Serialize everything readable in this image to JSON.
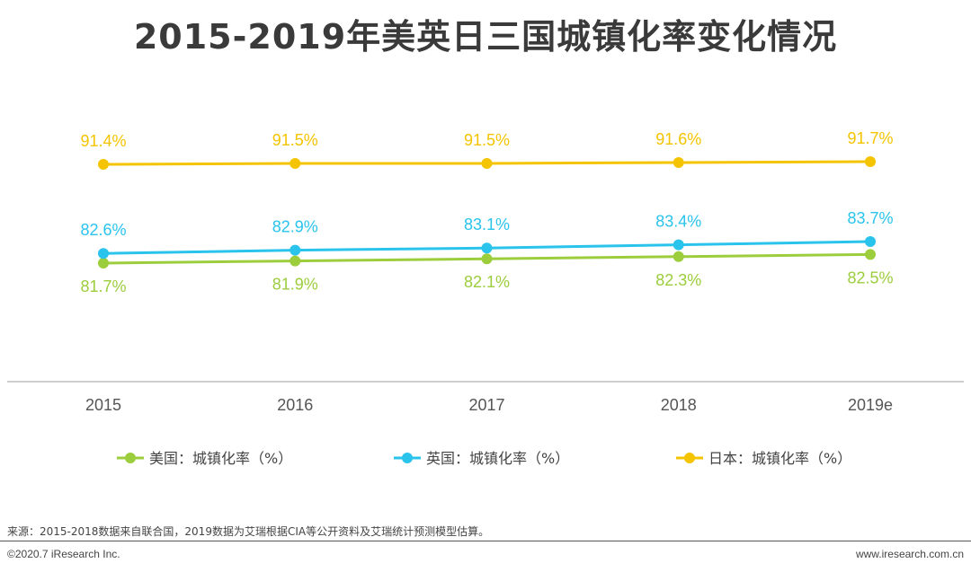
{
  "chart_data": {
    "type": "line",
    "title": "2015-2019年美英日三国城镇化率变化情况",
    "categories": [
      "2015",
      "2016",
      "2017",
      "2018",
      "2019e"
    ],
    "series": [
      {
        "name": "美国：城镇化率（%）",
        "values": [
          81.7,
          81.9,
          82.1,
          82.3,
          82.5
        ],
        "labels": [
          "81.7%",
          "81.9%",
          "82.1%",
          "82.3%",
          "82.5%"
        ],
        "color": "#9ccd3c"
      },
      {
        "name": "英国：城镇化率（%）",
        "values": [
          82.6,
          82.9,
          83.1,
          83.4,
          83.7
        ],
        "labels": [
          "82.6%",
          "82.9%",
          "83.1%",
          "83.4%",
          "83.7%"
        ],
        "color": "#29c3ec"
      },
      {
        "name": "日本：城镇化率（%）",
        "values": [
          91.4,
          91.5,
          91.5,
          91.6,
          91.7
        ],
        "labels": [
          "91.4%",
          "91.5%",
          "91.5%",
          "91.6%",
          "91.7%"
        ],
        "color": "#f5c400"
      }
    ],
    "legend_position": "bottom",
    "grid": false
  },
  "footer": {
    "source": "来源：2015-2018数据来自联合国，2019数据为艾瑞根据CIA等公开资料及艾瑞统计预测模型估算。",
    "copyright": "©2020.7 iResearch Inc.",
    "website": "www.iresearch.com.cn"
  }
}
